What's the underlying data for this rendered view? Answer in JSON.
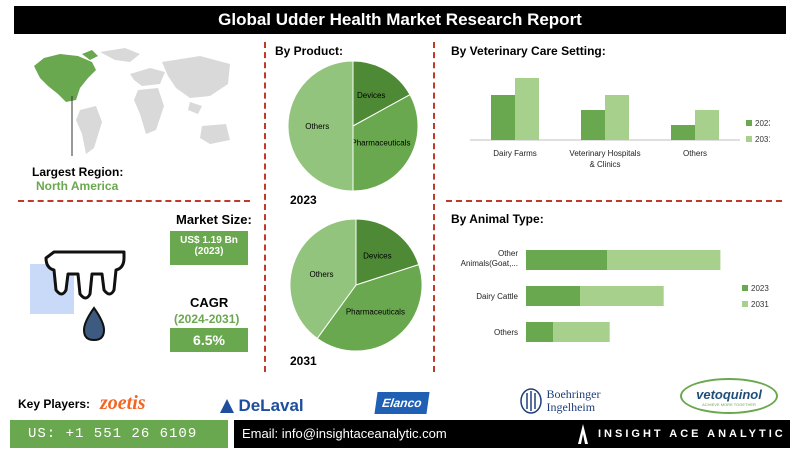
{
  "title": "Global Udder Health Market Research Report",
  "region": {
    "label": "Largest Region:",
    "value": "North America"
  },
  "market_size": {
    "label": "Market Size:",
    "value": "US$ 1.19 Bn",
    "year": "(2023)"
  },
  "cagr": {
    "label": "CAGR",
    "period": "(2024-2031)",
    "value": "6.5%"
  },
  "key_players_label": "Key Players:",
  "players": [
    "zoetis",
    "DeLaval",
    "Elanco",
    "Boehringer",
    "Ingelheim",
    "vetoquinol",
    "ACHIEVE MORE TOGETHER"
  ],
  "contact": {
    "phone": "US: +1 551 26 6109",
    "email": "Email: info@insightaceanalytic.com",
    "brand": "INSIGHT ACE ANALYTIC"
  },
  "colors": {
    "dark_green": "#6aa84f",
    "light_green": "#a8d08d",
    "mid_green": "#93c47d",
    "divider": "#c0392b"
  },
  "chart_data": [
    {
      "type": "pie",
      "title": "By Product:",
      "year_label": "2023",
      "slices": [
        {
          "label": "Others",
          "value": 50
        },
        {
          "label": "Devices",
          "value": 17
        },
        {
          "label": "Pharmaceuticals",
          "value": 33
        }
      ]
    },
    {
      "type": "pie",
      "year_label": "2031",
      "slices": [
        {
          "label": "Others",
          "value": 40
        },
        {
          "label": "Devices",
          "value": 20
        },
        {
          "label": "Pharmaceuticals",
          "value": 40
        }
      ]
    },
    {
      "type": "bar",
      "title": "By  Veterinary Care Setting:",
      "categories": [
        "Dairy Farms",
        "Veterinary Hospitals & Clinics",
        "Others"
      ],
      "series": [
        {
          "name": "2023",
          "values": [
            45,
            30,
            15
          ]
        },
        {
          "name": "2031",
          "values": [
            62,
            45,
            30
          ]
        }
      ],
      "ylim": [
        0,
        70
      ]
    },
    {
      "type": "bar",
      "orientation": "horizontal",
      "title": "By Animal Type:",
      "categories": [
        "Other Animals(Goat,...",
        "Dairy Cattle",
        "Others"
      ],
      "series": [
        {
          "name": "2023",
          "values": [
            30,
            20,
            10
          ]
        },
        {
          "name": "2031",
          "values": [
            42,
            31,
            21
          ]
        }
      ],
      "xlim": [
        0,
        80
      ]
    }
  ]
}
